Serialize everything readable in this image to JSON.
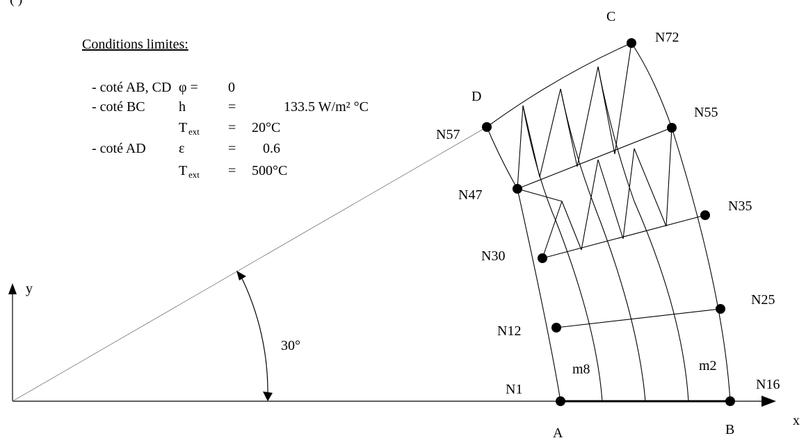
{
  "top_fragment": "( )",
  "conditions": {
    "heading": "Conditions limites:",
    "rows": [
      {
        "side": "- coté AB, CD",
        "sym": "φ =",
        "eq": "",
        "val": "0"
      },
      {
        "side": "- coté BC",
        "sym": "h",
        "eq": "=",
        "val": "133.5 W/m² °C"
      },
      {
        "side": "",
        "sym": "T",
        "sub": "ext",
        "eq": "=",
        "val": "20°C"
      },
      {
        "side": "- coté AD",
        "sym": "ε",
        "eq": "=",
        "val": "0.6"
      },
      {
        "side": "",
        "sym": "T",
        "sub": "ext",
        "eq": "=",
        "val": "500°C"
      }
    ]
  },
  "axes": {
    "x": "x",
    "y": "y"
  },
  "angle_label": "30°",
  "corners": {
    "A": "A",
    "B": "B",
    "C": "C",
    "D": "D"
  },
  "nodes": {
    "N1": "N1",
    "N16": "N16",
    "N12": "N12",
    "N25": "N25",
    "N30": "N30",
    "N35": "N35",
    "N47": "N47",
    "N55": "N55",
    "N57": "N57",
    "N72": "N72"
  },
  "elements": {
    "m8": "m8",
    "m2": "m2"
  }
}
